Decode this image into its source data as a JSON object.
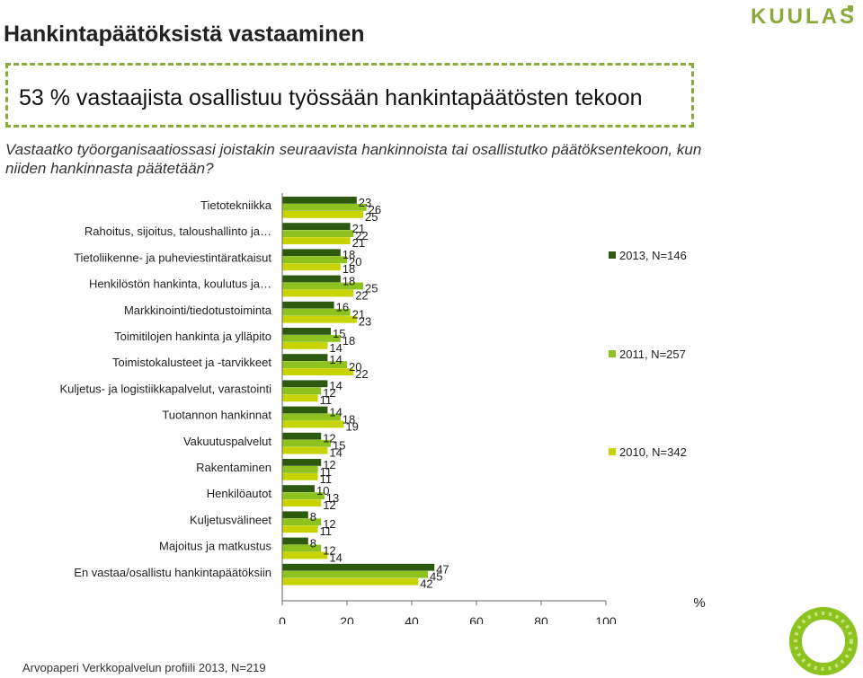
{
  "page": {
    "title": "Hankintapäätöksistä vastaaminen",
    "logo_text": "KUULAS",
    "headline": "53 % vastaajista osallistuu työssään hankintapäätösten tekoon",
    "question": "Vastaatko työorganisaatiossasi joistakin seuraavista hankinnoista tai osallistutko päätöksentekoon, kun niiden hankinnasta päätetään?",
    "footer": "Arvopaperi Verkkopalvelun profiili 2013, N=219"
  },
  "colors": {
    "brand": "#8aaa3c",
    "series": [
      "#2d5a0e",
      "#8dc21f",
      "#c8d400"
    ]
  },
  "chart_data": {
    "type": "bar",
    "orientation": "horizontal",
    "title": "",
    "xlabel": "%",
    "ylabel": "",
    "xlim": [
      0,
      100
    ],
    "xticks": [
      0,
      20,
      40,
      60,
      80,
      100
    ],
    "grid": false,
    "legend_position": "right",
    "categories": [
      "Tietotekniikka",
      "Rahoitus, sijoitus, taloushallinto ja…",
      "Tietoliikenne- ja puheviestintäratkaisut",
      "Henkilöstön hankinta, koulutus ja…",
      "Markkinointi/tiedotustoiminta",
      "Toimitilojen hankinta ja ylläpito",
      "Toimistokalusteet ja -tarvikkeet",
      "Kuljetus- ja logistiikkapalvelut, varastointi",
      "Tuotannon hankinnat",
      "Vakuutuspalvelut",
      "Rakentaminen",
      "Henkilöautot",
      "Kuljetusvälineet",
      "Majoitus ja matkustus",
      "En vastaa/osallistu hankintapäätöksiin"
    ],
    "series": [
      {
        "name": "2013, N=146",
        "values": [
          23,
          21,
          18,
          18,
          16,
          15,
          14,
          14,
          14,
          12,
          12,
          10,
          8,
          8,
          47
        ]
      },
      {
        "name": "2011, N=257",
        "values": [
          26,
          22,
          20,
          25,
          21,
          18,
          20,
          12,
          18,
          15,
          11,
          13,
          12,
          12,
          45
        ]
      },
      {
        "name": "2010, N=342",
        "values": [
          25,
          21,
          18,
          22,
          23,
          14,
          22,
          11,
          19,
          14,
          11,
          12,
          11,
          14,
          42
        ]
      }
    ]
  }
}
